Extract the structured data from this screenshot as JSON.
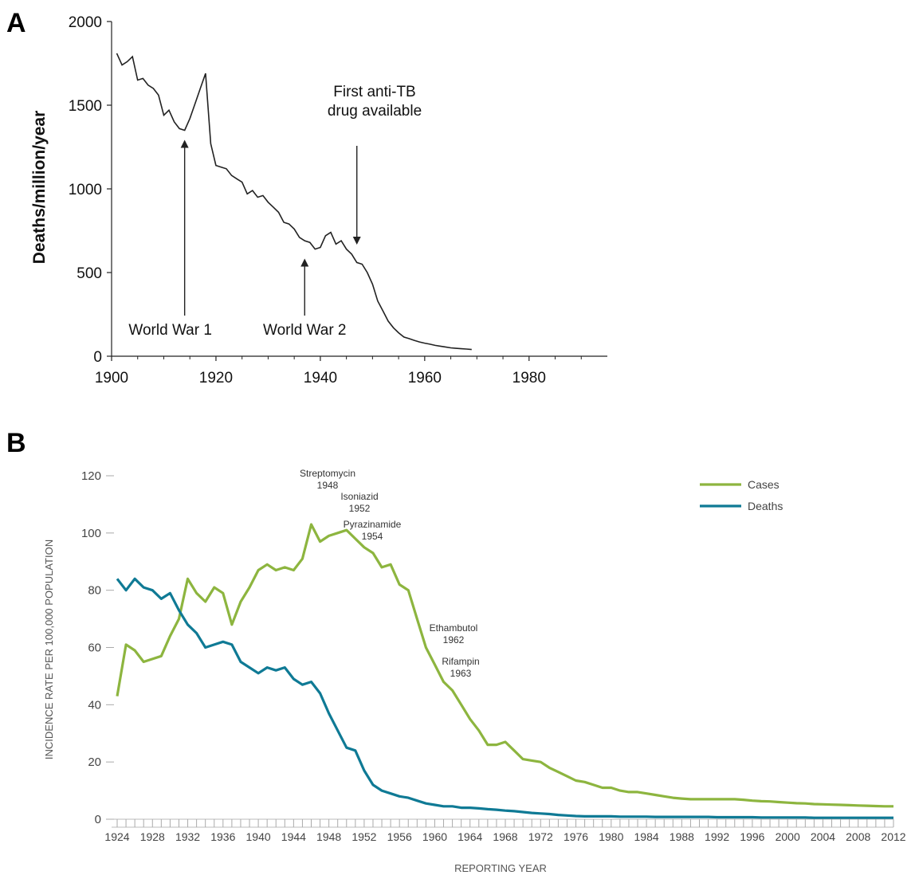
{
  "chart_data": [
    {
      "panel_label": "A",
      "type": "line",
      "ylabel": "Deaths/million/year",
      "xlim": [
        1900,
        1995
      ],
      "ylim": [
        0,
        2000
      ],
      "xticks": [
        1900,
        1920,
        1940,
        1960,
        1980
      ],
      "yticks": [
        0,
        500,
        1000,
        1500,
        2000
      ],
      "grid": false,
      "series": [
        {
          "x": [
            1901,
            1902,
            1903,
            1904,
            1905,
            1906,
            1907,
            1908,
            1909,
            1910,
            1911,
            1912,
            1913,
            1914,
            1915,
            1916,
            1917,
            1918,
            1919,
            1920,
            1921,
            1922,
            1923,
            1924,
            1925,
            1926,
            1927,
            1928,
            1929,
            1930,
            1931,
            1932,
            1933,
            1934,
            1935,
            1936,
            1937,
            1938,
            1939,
            1940,
            1941,
            1942,
            1943,
            1944,
            1945,
            1946,
            1947,
            1948,
            1949,
            1950,
            1951,
            1952,
            1953,
            1954,
            1955,
            1956,
            1957,
            1958,
            1959,
            1960,
            1961,
            1962,
            1963,
            1964,
            1965,
            1966,
            1967,
            1968,
            1969
          ],
          "y": [
            1810,
            1740,
            1760,
            1790,
            1650,
            1660,
            1620,
            1600,
            1560,
            1440,
            1470,
            1400,
            1360,
            1350,
            1420,
            1510,
            1600,
            1690,
            1270,
            1140,
            1130,
            1120,
            1080,
            1060,
            1040,
            970,
            990,
            950,
            960,
            920,
            890,
            860,
            800,
            790,
            760,
            710,
            690,
            680,
            640,
            650,
            720,
            740,
            670,
            690,
            640,
            610,
            560,
            550,
            500,
            430,
            330,
            270,
            210,
            170,
            140,
            115,
            105,
            95,
            85,
            78,
            72,
            65,
            60,
            55,
            50,
            47,
            45,
            43,
            40
          ]
        }
      ],
      "annotations": [
        {
          "text": "World War 1",
          "x": 1914,
          "y": 1350
        },
        {
          "text": "World War 2",
          "x": 1937,
          "y": 650
        },
        {
          "text_lines": [
            "First anti-TB",
            "drug available"
          ],
          "x": 1947,
          "y": 660
        }
      ]
    },
    {
      "panel_label": "B",
      "type": "line",
      "xlabel": "REPORTING YEAR",
      "ylabel": "INCIDENCE RATE PER 100,000 POPULATION",
      "xlim": [
        1924,
        2012
      ],
      "ylim": [
        0,
        120
      ],
      "yticks": [
        0,
        20,
        40,
        60,
        80,
        100,
        120
      ],
      "xticks": [
        1924,
        1928,
        1932,
        1936,
        1940,
        1944,
        1948,
        1952,
        1956,
        1960,
        1964,
        1968,
        1972,
        1976,
        1980,
        1984,
        1988,
        1992,
        1996,
        2000,
        2004,
        2008,
        2012
      ],
      "grid": false,
      "legend_position": "top-right",
      "series": [
        {
          "name": "Cases",
          "color": "#8db53f",
          "x": [
            1924,
            1925,
            1926,
            1927,
            1928,
            1929,
            1930,
            1931,
            1932,
            1933,
            1934,
            1935,
            1936,
            1937,
            1938,
            1939,
            1940,
            1941,
            1942,
            1943,
            1944,
            1945,
            1946,
            1947,
            1948,
            1949,
            1950,
            1951,
            1952,
            1953,
            1954,
            1955,
            1956,
            1957,
            1958,
            1959,
            1960,
            1961,
            1962,
            1963,
            1964,
            1965,
            1966,
            1967,
            1968,
            1969,
            1970,
            1971,
            1972,
            1973,
            1974,
            1975,
            1976,
            1977,
            1978,
            1979,
            1980,
            1981,
            1982,
            1983,
            1984,
            1985,
            1986,
            1987,
            1988,
            1989,
            1990,
            1991,
            1992,
            1993,
            1994,
            1995,
            1996,
            1997,
            1998,
            1999,
            2000,
            2001,
            2002,
            2003,
            2004,
            2005,
            2006,
            2007,
            2008,
            2009,
            2010,
            2011,
            2012
          ],
          "y": [
            43,
            61,
            59,
            55,
            56,
            57,
            64,
            70,
            84,
            79,
            76,
            81,
            79,
            68,
            76,
            81,
            87,
            89,
            87,
            88,
            87,
            91,
            103,
            97,
            99,
            100,
            101,
            98,
            95,
            93,
            88,
            89,
            82,
            80,
            70,
            60,
            54,
            48,
            45,
            40,
            35,
            31,
            26,
            26,
            27,
            24,
            21,
            20.5,
            20,
            18,
            16.5,
            15,
            13.5,
            13,
            12,
            11,
            11,
            10,
            9.5,
            9.5,
            9,
            8.5,
            8,
            7.5,
            7.2,
            7,
            7,
            7,
            7,
            7,
            7,
            6.8,
            6.5,
            6.3,
            6.2,
            6,
            5.8,
            5.6,
            5.5,
            5.3,
            5.2,
            5.1,
            5.0,
            4.9,
            4.8,
            4.7,
            4.6,
            4.5,
            4.5
          ]
        },
        {
          "name": "Deaths",
          "color": "#0f7a95",
          "x": [
            1924,
            1925,
            1926,
            1927,
            1928,
            1929,
            1930,
            1931,
            1932,
            1933,
            1934,
            1935,
            1936,
            1937,
            1938,
            1939,
            1940,
            1941,
            1942,
            1943,
            1944,
            1945,
            1946,
            1947,
            1948,
            1949,
            1950,
            1951,
            1952,
            1953,
            1954,
            1955,
            1956,
            1957,
            1958,
            1959,
            1960,
            1961,
            1962,
            1963,
            1964,
            1965,
            1966,
            1967,
            1968,
            1969,
            1970,
            1971,
            1972,
            1973,
            1974,
            1975,
            1976,
            1977,
            1978,
            1979,
            1980,
            1981,
            1982,
            1983,
            1984,
            1985,
            1986,
            1987,
            1988,
            1989,
            1990,
            1991,
            1992,
            1993,
            1994,
            1995,
            1996,
            1997,
            1998,
            1999,
            2000,
            2001,
            2002,
            2003,
            2004,
            2005,
            2006,
            2007,
            2008,
            2009,
            2010,
            2011,
            2012
          ],
          "y": [
            84,
            80,
            84,
            81,
            80,
            77,
            79,
            73,
            68,
            65,
            60,
            61,
            62,
            61,
            55,
            53,
            51,
            53,
            52,
            53,
            49,
            47,
            48,
            44,
            37,
            31,
            25,
            24,
            17,
            12,
            10,
            9,
            8,
            7.5,
            6.5,
            5.5,
            5,
            4.5,
            4.5,
            4,
            4,
            3.8,
            3.5,
            3.3,
            3,
            2.8,
            2.5,
            2.2,
            2,
            1.8,
            1.5,
            1.3,
            1.1,
            1,
            1,
            1,
            1,
            0.9,
            0.9,
            0.9,
            0.9,
            0.8,
            0.8,
            0.8,
            0.8,
            0.8,
            0.8,
            0.8,
            0.7,
            0.7,
            0.7,
            0.7,
            0.7,
            0.6,
            0.6,
            0.6,
            0.6,
            0.6,
            0.6,
            0.5,
            0.5,
            0.5,
            0.5,
            0.5,
            0.5,
            0.5,
            0.5,
            0.5,
            0.5
          ]
        }
      ],
      "annotations": [
        {
          "lines": [
            "Streptomycin",
            "1948"
          ],
          "x": 1948
        },
        {
          "lines": [
            "Isoniazid",
            "1952"
          ],
          "x": 1952
        },
        {
          "lines": [
            "Pyrazinamide",
            "1954"
          ],
          "x": 1954
        },
        {
          "lines": [
            "Ethambutol",
            "1962"
          ],
          "x": 1962
        },
        {
          "lines": [
            "Rifampin",
            "1963"
          ],
          "x": 1963
        }
      ]
    }
  ]
}
